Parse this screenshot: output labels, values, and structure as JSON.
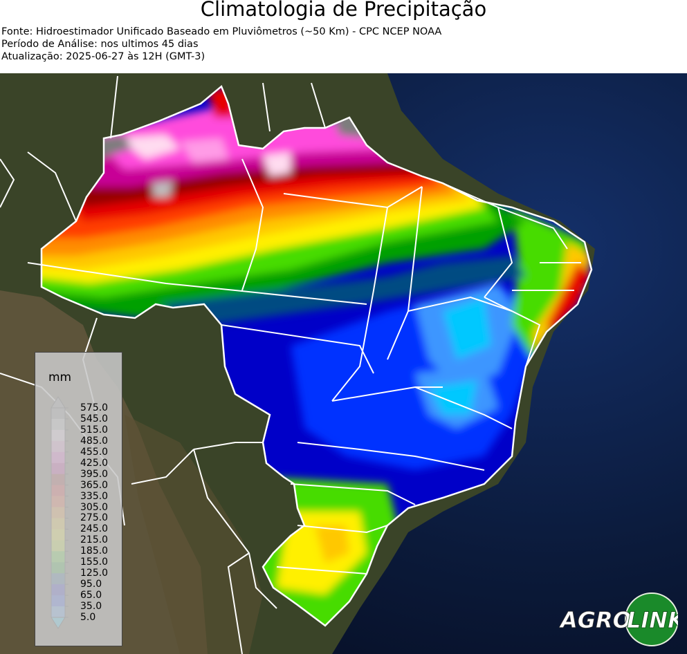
{
  "header": {
    "title": "Climatologia de Precipitação",
    "source": "Fonte: Hidroestimador Unificado Baseado em Pluviômetros (~50 Km) - CPC NCEP NOAA",
    "period": "Período de Análise: nos ultimos 45 dias",
    "updated": "Atualização: 2025-06-27 às 12H (GMT-3)"
  },
  "legend": {
    "unit": "mm",
    "ticks": [
      "575.0",
      "545.0",
      "515.0",
      "485.0",
      "455.0",
      "425.0",
      "395.0",
      "365.0",
      "335.0",
      "305.0",
      "275.0",
      "245.0",
      "215.0",
      "185.0",
      "155.0",
      "125.0",
      "95.0",
      "65.0",
      "35.0",
      "5.0"
    ],
    "colors": [
      "#7d7d7d",
      "#bdbdbd",
      "#ffdcf0",
      "#ff9be6",
      "#ff4bdc",
      "#c80096",
      "#960000",
      "#e60000",
      "#ff3c00",
      "#ff8c00",
      "#ffc800",
      "#fff000",
      "#c8f000",
      "#46dc00",
      "#00a000",
      "#004b82",
      "#0000c8",
      "#0032ff",
      "#3c96ff",
      "#00c8ff"
    ]
  },
  "logo": {
    "text_agro": "AGRO",
    "text_link": "LINK"
  },
  "colors": {
    "ocean": "#0b1a3a",
    "land": "#2f3a24",
    "border": "#ffffff"
  }
}
